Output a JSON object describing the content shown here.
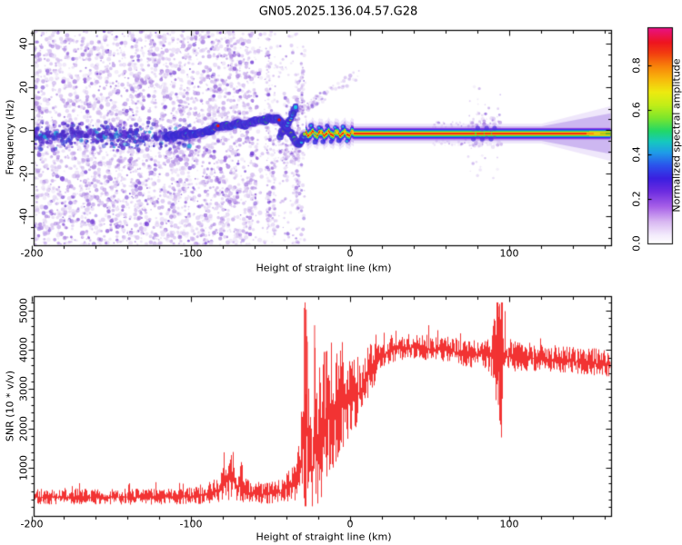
{
  "figure": {
    "title": "GN05.2025.136.04.57.G28"
  },
  "axes": {
    "top": {
      "xlabel": "Height of straight line (km)",
      "ylabel": "Frequency (Hz)",
      "xtick_labels": [
        "-200",
        "-100",
        "0",
        "100"
      ],
      "xtick_values": [
        -200,
        -100,
        0,
        100
      ],
      "ytick_labels": [
        "40",
        "20",
        "0",
        "-20",
        "-40"
      ],
      "ytick_values": [
        40,
        20,
        0,
        -20,
        -40
      ],
      "xlim": [
        -200,
        163
      ],
      "ylim": [
        -53.3,
        46.4
      ]
    },
    "bottom": {
      "xlabel": "Height of straight line (km)",
      "ylabel": "SNR (10 * v/v)",
      "xtick_labels": [
        "-200",
        "-100",
        "0",
        "100"
      ],
      "xtick_values": [
        -200,
        -100,
        0,
        100
      ],
      "ytick_labels": [
        "1000",
        "2000",
        "3000",
        "4000",
        "5000"
      ],
      "ytick_values": [
        1000,
        2000,
        3000,
        4000,
        5000
      ],
      "xlim": [
        -200,
        163
      ],
      "ylim": [
        -220,
        5360
      ]
    }
  },
  "colorbar": {
    "label": "Normalized spectral amplitude",
    "tick_labels": [
      "0.0",
      "0.2",
      "0.4",
      "0.6",
      "0.8"
    ],
    "tick_values": [
      0,
      0.2,
      0.4,
      0.6,
      0.8
    ],
    "vmax": 0.97,
    "gradient": [
      [
        0.0,
        "#ffffff"
      ],
      [
        0.04,
        "#f3eafc"
      ],
      [
        0.1,
        "#d9b8f2"
      ],
      [
        0.17,
        "#a760e8"
      ],
      [
        0.24,
        "#6d2ce0"
      ],
      [
        0.3,
        "#3b1fe0"
      ],
      [
        0.36,
        "#2b52ec"
      ],
      [
        0.42,
        "#1f9ce8"
      ],
      [
        0.47,
        "#16c8c0"
      ],
      [
        0.52,
        "#22d868"
      ],
      [
        0.58,
        "#7ce62c"
      ],
      [
        0.64,
        "#c2ee18"
      ],
      [
        0.7,
        "#eeea10"
      ],
      [
        0.76,
        "#f8b90c"
      ],
      [
        0.82,
        "#f8820a"
      ],
      [
        0.88,
        "#f23d10"
      ],
      [
        0.93,
        "#ee1420"
      ],
      [
        1.0,
        "#e8128a"
      ]
    ]
  },
  "chart_data": [
    {
      "type": "heatmap",
      "title": "GN05.2025.136.04.57.G28",
      "xlabel": "Height of straight line (km)",
      "ylabel": "Frequency (Hz)",
      "xlim": [
        -200,
        163
      ],
      "ylim": [
        -53.3,
        46.4
      ],
      "colorbar_label": "Normalized spectral amplitude",
      "legend": "none",
      "grid": false,
      "description": "Doppler spectrogram: broadband purple noise speckle for heights below about -55 km, a wandering signal ridge near 0 Hz that brightens (cyan/green) from -110 km, kinks between -45 and -28 km, then becomes a narrow saturated rainbow stripe at about -1.6 Hz out to the right edge where it fans out.",
      "seed": 20250136,
      "ridge_track": [
        [
          -200,
          -2.0
        ],
        [
          -185,
          -2.2
        ],
        [
          -170,
          -2.0
        ],
        [
          -155,
          -2.4
        ],
        [
          -140,
          -2.1
        ],
        [
          -128,
          -2.6
        ],
        [
          -118,
          -2.8
        ],
        [
          -112,
          -2.6
        ],
        [
          -106,
          -2.2
        ],
        [
          -100,
          -1.9
        ],
        [
          -95,
          -1.4
        ],
        [
          -90,
          -0.6
        ],
        [
          -86,
          0.6
        ],
        [
          -83,
          1.8
        ],
        [
          -80,
          1.6
        ],
        [
          -77,
          2.2
        ],
        [
          -73,
          2.4
        ],
        [
          -69,
          2.8
        ],
        [
          -66,
          2.4
        ],
        [
          -63,
          3.2
        ],
        [
          -60,
          3.8
        ],
        [
          -57,
          4.2
        ],
        [
          -54,
          4.6
        ],
        [
          -51,
          5.2
        ],
        [
          -49,
          5.4
        ],
        [
          -47,
          5.0
        ],
        [
          -45,
          5.8
        ],
        [
          -43,
          4.2
        ],
        [
          -41,
          2.4
        ],
        [
          -39,
          0.4
        ],
        [
          -37,
          -2.2
        ],
        [
          -35,
          -4.6
        ],
        [
          -33.5,
          -6.4
        ],
        [
          -32,
          -7.2
        ],
        [
          -31,
          -5.6
        ],
        [
          -30,
          -3.4
        ],
        [
          -29,
          -2.2
        ],
        [
          -28,
          -1.6
        ]
      ],
      "ridge_branch": [
        [
          -44,
          -2.6
        ],
        [
          -42,
          -0.6
        ],
        [
          -40,
          1.6
        ],
        [
          -38,
          4.2
        ],
        [
          -36.5,
          6.6
        ],
        [
          -35.5,
          8.8
        ],
        [
          -34.8,
          10.4
        ],
        [
          -34.2,
          11.6
        ]
      ],
      "red_dots": [
        [
          -83,
          2.0
        ],
        [
          -44.6,
          4.8
        ]
      ],
      "stripe": {
        "center_hz": -1.6,
        "blobby_span_km": [
          -28,
          2
        ],
        "smooth_from_km": 2,
        "fan_from_km": 120,
        "end_color_km": 148,
        "core_green_segments": [
          [
            78.2,
            78.9
          ],
          [
            83.7,
            84.5
          ],
          [
            88.2,
            89.0
          ]
        ],
        "blue_lumps_km": [
          -27,
          -24.5,
          -22,
          -19.5,
          -17,
          -14.5,
          -12,
          -9.5,
          -7,
          -4.5,
          -2
        ],
        "disturb_bumps_km": [
          77.5,
          80.2,
          83.0,
          85.8,
          88.6,
          90.8
        ]
      },
      "noise": {
        "field_km": [
          -200,
          -54
        ],
        "fade_from_km": -62,
        "center_band": {
          "km": [
            -200,
            -100
          ],
          "hz_center": -2.5,
          "hz_spread": 7
        },
        "streaks": [
          {
            "km": -51.5,
            "sd": 1.1,
            "n": 120,
            "f0": -48,
            "f1": 44
          },
          {
            "km": -47.8,
            "sd": 0.9,
            "n": 55,
            "f0": -50,
            "f1": -2
          },
          {
            "km": -40.2,
            "sd": 1.0,
            "n": 60,
            "f0": -22,
            "f1": 16
          },
          {
            "km": -33.2,
            "sd": 1.2,
            "n": 95,
            "f0": -38,
            "f1": 26
          },
          {
            "km": -30.0,
            "sd": 0.8,
            "n": 40,
            "f0": 6,
            "f1": 30
          }
        ],
        "plume": {
          "from": [
            -36,
            7
          ],
          "to": [
            6,
            26
          ]
        },
        "sub_cluster_km": [
          -46,
          -28
        ],
        "disturbance_km": [
          74,
          95
        ],
        "tufts_km": [
          52,
          74
        ]
      }
    },
    {
      "type": "line",
      "color": "#f23333",
      "xlabel": "Height of straight line (km)",
      "ylabel": "SNR (10 * v/v)",
      "xlim": [
        -200,
        163
      ],
      "ylim": [
        -220,
        5360
      ],
      "legend": "none",
      "grid": false,
      "seed": 771136,
      "description": "Noisy SNR trace: floor ~250 below -90 km, bump ~1300 near -75 km, giant spikes to ~5050 near -28 km, wild fading oscillations -26..-5 km, rise to plateau ~4000 by +25 km, spike burst 2200..5160 near +94 km, slow decline to ~3620 at right edge.",
      "envelope_anchors": [
        [
          -200,
          250,
          230
        ],
        [
          -160,
          250,
          230
        ],
        [
          -120,
          260,
          240
        ],
        [
          -95,
          280,
          260
        ],
        [
          -82,
          420,
          380
        ],
        [
          -78,
          650,
          650
        ],
        [
          -74,
          750,
          750
        ],
        [
          -71,
          500,
          450
        ],
        [
          -68,
          650,
          700
        ],
        [
          -64,
          380,
          330
        ],
        [
          -58,
          330,
          300
        ],
        [
          -50,
          340,
          320
        ],
        [
          -44,
          380,
          340
        ],
        [
          -40,
          500,
          450
        ],
        [
          -36,
          550,
          500
        ],
        [
          -32,
          800,
          800
        ],
        [
          -29,
          1800,
          3300
        ],
        [
          -27.5,
          2200,
          2900
        ],
        [
          -26,
          1400,
          1900
        ],
        [
          -24,
          1000,
          1400
        ],
        [
          -22.5,
          2200,
          2500
        ],
        [
          -21,
          1400,
          1800
        ],
        [
          -19,
          1700,
          2300
        ],
        [
          -17,
          1900,
          2300
        ],
        [
          -15,
          2100,
          2100
        ],
        [
          -13,
          2300,
          2100
        ],
        [
          -11,
          2200,
          2000
        ],
        [
          -9,
          2400,
          1900
        ],
        [
          -7,
          2500,
          1800
        ],
        [
          -5,
          2600,
          1700
        ],
        [
          -3,
          2700,
          1500
        ],
        [
          -1,
          2750,
          1400
        ],
        [
          2,
          2800,
          1300
        ],
        [
          5,
          2900,
          1200
        ],
        [
          8,
          3100,
          1000
        ],
        [
          12,
          3400,
          800
        ],
        [
          16,
          3700,
          600
        ],
        [
          20,
          3850,
          480
        ],
        [
          25,
          3980,
          420
        ],
        [
          30,
          4020,
          380
        ],
        [
          35,
          4050,
          360
        ],
        [
          40,
          4060,
          360
        ],
        [
          45,
          4050,
          360
        ],
        [
          50,
          4020,
          380
        ],
        [
          55,
          4000,
          380
        ],
        [
          60,
          3980,
          380
        ],
        [
          65,
          3950,
          380
        ],
        [
          70,
          3920,
          400
        ],
        [
          75,
          3880,
          420
        ],
        [
          80,
          3880,
          400
        ],
        [
          84,
          3900,
          420
        ],
        [
          87,
          3850,
          600
        ],
        [
          90,
          3900,
          900
        ],
        [
          92,
          3800,
          1600
        ],
        [
          93.5,
          3700,
          2600
        ],
        [
          95,
          3750,
          2600
        ],
        [
          96.5,
          3800,
          1400
        ],
        [
          98,
          3820,
          700
        ],
        [
          100,
          3820,
          500
        ],
        [
          105,
          3800,
          440
        ],
        [
          110,
          3790,
          420
        ],
        [
          115,
          3780,
          420
        ],
        [
          120,
          3760,
          400
        ],
        [
          125,
          3740,
          400
        ],
        [
          130,
          3730,
          400
        ],
        [
          135,
          3720,
          400
        ],
        [
          140,
          3700,
          400
        ],
        [
          145,
          3680,
          400
        ],
        [
          150,
          3670,
          400
        ],
        [
          155,
          3650,
          400
        ],
        [
          160,
          3630,
          400
        ],
        [
          163,
          3620,
          400
        ]
      ],
      "spikes": [
        {
          "km": -28.7,
          "top": 5060
        },
        {
          "km": -28.2,
          "top": 4700
        },
        {
          "km": -27.6,
          "top": 5020
        },
        {
          "km": -26.9,
          "top": 4200
        },
        {
          "km": -22.3,
          "top": 4620
        },
        {
          "km": -15.3,
          "top": 3950
        },
        {
          "km": 93.2,
          "top": 5100,
          "bot": 2600
        },
        {
          "km": 94.0,
          "top": 5160,
          "bot": 2200
        },
        {
          "km": 94.7,
          "top": 4400,
          "bot": 2500
        }
      ]
    }
  ]
}
